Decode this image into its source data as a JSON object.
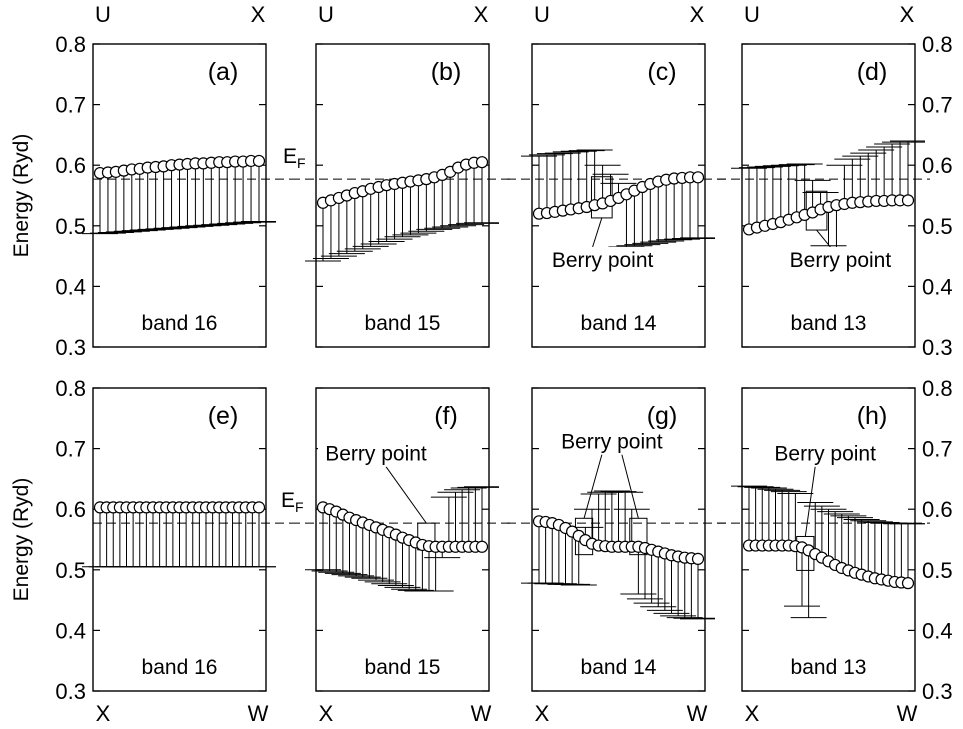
{
  "chart_data": {
    "type": "scatter",
    "ylabel": "Energy (Ryd)",
    "ylim": [
      0.3,
      0.8
    ],
    "yticks": [
      "0.3",
      "0.4",
      "0.5",
      "0.6",
      "0.7",
      "0.8"
    ],
    "fermi_level": 0.577,
    "fermi_label": "E",
    "fermi_label_sub": "F",
    "panels": [
      {
        "id": "a",
        "label": "(a)",
        "band": "band 16",
        "row": 0,
        "col": 0,
        "x_start": "U",
        "x_end": "X",
        "points": [
          0.587,
          0.588,
          0.589,
          0.591,
          0.593,
          0.594,
          0.596,
          0.597,
          0.598,
          0.6,
          0.601,
          0.602,
          0.603,
          0.603,
          0.604,
          0.605,
          0.605,
          0.606,
          0.606,
          0.607,
          0.607
        ],
        "error_low": [
          0.487,
          0.488,
          0.489,
          0.49,
          0.491,
          0.492,
          0.493,
          0.494,
          0.495,
          0.496,
          0.497,
          0.498,
          0.499,
          0.5,
          0.501,
          0.502,
          0.503,
          0.504,
          0.505,
          0.506,
          0.507
        ],
        "error_high": [],
        "berry_boxes": []
      },
      {
        "id": "b",
        "label": "(b)",
        "band": "band 15",
        "row": 0,
        "col": 1,
        "x_start": "U",
        "x_end": "X",
        "points": [
          0.538,
          0.542,
          0.546,
          0.55,
          0.554,
          0.557,
          0.561,
          0.564,
          0.567,
          0.569,
          0.571,
          0.573,
          0.575,
          0.577,
          0.58,
          0.584,
          0.589,
          0.596,
          0.601,
          0.604,
          0.605
        ],
        "error_low": [
          0.442,
          0.446,
          0.45,
          0.454,
          0.458,
          0.462,
          0.466,
          0.47,
          0.474,
          0.478,
          0.482,
          0.485,
          0.488,
          0.491,
          0.494,
          0.496,
          0.498,
          0.5,
          0.502,
          0.504,
          0.505
        ],
        "error_high": [],
        "berry_boxes": []
      },
      {
        "id": "c",
        "label": "(c)",
        "band": "band 14",
        "row": 0,
        "col": 2,
        "x_start": "U",
        "x_end": "X",
        "points": [
          0.52,
          0.521,
          0.523,
          0.525,
          0.527,
          0.529,
          0.531,
          0.534,
          0.537,
          0.541,
          0.546,
          0.552,
          0.558,
          0.564,
          0.569,
          0.573,
          0.576,
          0.578,
          0.579,
          0.58,
          0.58
        ],
        "error_low": [],
        "error_high": [
          0.615,
          0.617,
          0.619,
          0.62,
          0.622,
          0.623,
          0.624,
          0.625,
          0.6,
          0.585,
          0.57,
          0.465,
          0.467,
          0.469,
          0.471,
          0.473,
          0.475,
          0.477,
          0.478,
          0.479,
          0.48
        ],
        "berry_boxes": [
          {
            "x": 7.9,
            "y": 0.547,
            "hw": 1.3,
            "hh": 0.034
          }
        ],
        "berry_label": "Berry point",
        "berry_label_pos": {
          "x": 8.0,
          "y": 0.432
        }
      },
      {
        "id": "d",
        "label": "(d)",
        "band": "band 13",
        "row": 0,
        "col": 3,
        "x_start": "U",
        "x_end": "X",
        "points": [
          0.494,
          0.497,
          0.5,
          0.503,
          0.506,
          0.51,
          0.514,
          0.518,
          0.522,
          0.527,
          0.531,
          0.534,
          0.536,
          0.538,
          0.539,
          0.54,
          0.541,
          0.541,
          0.542,
          0.542,
          0.542
        ],
        "error_low": [],
        "error_high": [
          0.595,
          0.596,
          0.597,
          0.598,
          0.599,
          0.6,
          0.601,
          0.602,
          0.575,
          0.555,
          0.467,
          0.43,
          0.6,
          0.61,
          0.615,
          0.62,
          0.625,
          0.63,
          0.635,
          0.638,
          0.64
        ],
        "berry_boxes": [
          {
            "x": 8.5,
            "y": 0.525,
            "hw": 1.3,
            "hh": 0.032
          }
        ],
        "berry_label": "Berry point",
        "berry_label_pos": {
          "x": 11.5,
          "y": 0.432
        }
      },
      {
        "id": "e",
        "label": "(e)",
        "band": "band 16",
        "row": 1,
        "col": 0,
        "x_start": "X",
        "x_end": "W",
        "points": [
          0.603,
          0.603,
          0.603,
          0.603,
          0.603,
          0.603,
          0.603,
          0.603,
          0.603,
          0.603,
          0.603,
          0.603,
          0.603,
          0.603,
          0.603,
          0.603,
          0.603,
          0.603,
          0.603,
          0.603,
          0.603,
          0.603,
          0.603,
          0.603,
          0.603
        ],
        "error_low": [
          0.505,
          0.505,
          0.505,
          0.505,
          0.505,
          0.505,
          0.505,
          0.505,
          0.505,
          0.505,
          0.505,
          0.505,
          0.505,
          0.505,
          0.505,
          0.505,
          0.505,
          0.505,
          0.505,
          0.505,
          0.505,
          0.505,
          0.505,
          0.505,
          0.505
        ],
        "error_high": [],
        "berry_boxes": []
      },
      {
        "id": "f",
        "label": "(f)",
        "band": "band 15",
        "row": 1,
        "col": 1,
        "x_start": "X",
        "x_end": "W",
        "points": [
          0.603,
          0.6,
          0.596,
          0.591,
          0.586,
          0.582,
          0.578,
          0.574,
          0.57,
          0.566,
          0.562,
          0.558,
          0.553,
          0.549,
          0.545,
          0.541,
          0.539,
          0.538,
          0.538,
          0.538,
          0.538,
          0.538,
          0.538,
          0.538,
          0.538
        ],
        "error_low": [
          0.5,
          0.498,
          0.496,
          0.494,
          0.492,
          0.49,
          0.488,
          0.486,
          0.483,
          0.48,
          0.477,
          0.474,
          0.471,
          0.468,
          0.466,
          0.465,
          0.465,
          0.465,
          0.52,
          0.62,
          0.628,
          0.632,
          0.635,
          0.636,
          0.637
        ],
        "error_high": [],
        "berry_boxes": [
          {
            "x": 15.6,
            "y": 0.555,
            "hw": 1.3,
            "hh": 0.022
          }
        ],
        "berry_label": "Berry point",
        "berry_label_pos": {
          "x": 8.0,
          "y": 0.68
        }
      },
      {
        "id": "g",
        "label": "(g)",
        "band": "band 14",
        "row": 1,
        "col": 2,
        "x_start": "X",
        "x_end": "W",
        "points": [
          0.58,
          0.579,
          0.577,
          0.574,
          0.569,
          0.563,
          0.556,
          0.549,
          0.543,
          0.54,
          0.539,
          0.538,
          0.538,
          0.538,
          0.538,
          0.538,
          0.536,
          0.533,
          0.53,
          0.527,
          0.524,
          0.522,
          0.52,
          0.519,
          0.518
        ],
        "error_low": [
          0.478,
          0.478,
          0.477,
          0.477,
          0.476,
          0.476,
          0.475,
          0.57,
          0.6,
          0.625,
          0.628,
          0.63,
          0.629,
          0.628,
          0.6,
          0.46,
          0.452,
          0.445,
          0.439,
          0.433,
          0.428,
          0.424,
          0.421,
          0.42,
          0.419
        ],
        "error_high": [],
        "berry_boxes": [
          {
            "x": 6.8,
            "y": 0.555,
            "hw": 1.3,
            "hh": 0.03
          },
          {
            "x": 15.0,
            "y": 0.555,
            "hw": 1.3,
            "hh": 0.03
          }
        ],
        "berry_label": "Berry point",
        "berry_label_pos": {
          "x": 11.0,
          "y": 0.7
        }
      },
      {
        "id": "h",
        "label": "(h)",
        "band": "band 13",
        "row": 1,
        "col": 3,
        "x_start": "X",
        "x_end": "W",
        "points": [
          0.54,
          0.54,
          0.54,
          0.54,
          0.54,
          0.54,
          0.54,
          0.539,
          0.537,
          0.532,
          0.526,
          0.52,
          0.514,
          0.508,
          0.503,
          0.499,
          0.495,
          0.492,
          0.489,
          0.486,
          0.484,
          0.482,
          0.48,
          0.479,
          0.478
        ],
        "error_low": [
          0.638,
          0.637,
          0.636,
          0.635,
          0.633,
          0.631,
          0.629,
          0.626,
          0.44,
          0.421,
          0.611,
          0.605,
          0.6,
          0.596,
          0.592,
          0.589,
          0.586,
          0.583,
          0.581,
          0.579,
          0.578,
          0.577,
          0.577,
          0.576,
          0.576
        ],
        "error_high": [],
        "berry_boxes": [
          {
            "x": 8.5,
            "y": 0.527,
            "hw": 1.3,
            "hh": 0.028
          }
        ],
        "berry_label": "Berry point",
        "berry_label_pos": {
          "x": 11.5,
          "y": 0.68
        }
      }
    ]
  }
}
